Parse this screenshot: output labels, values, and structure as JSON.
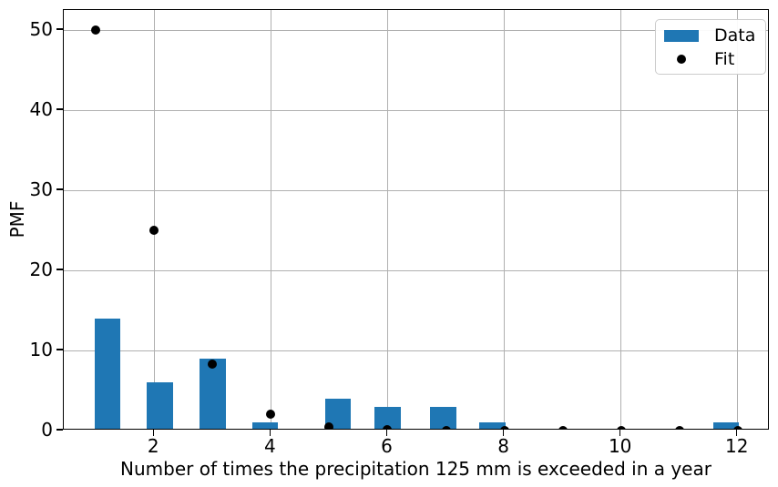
{
  "figure": {
    "background": "#ffffff"
  },
  "chart_data": {
    "type": "bar",
    "title": "",
    "xlabel": "Number of times the precipitation 125 mm is exceeded in a year",
    "ylabel": "PMF",
    "categories": [
      1,
      2,
      3,
      4,
      5,
      6,
      7,
      8,
      9,
      10,
      11,
      12
    ],
    "series": [
      {
        "name": "Data",
        "type": "bar",
        "color": "#1f77b4",
        "values": [
          14,
          6,
          9,
          1,
          4,
          3,
          3,
          1,
          0,
          0,
          0,
          1
        ],
        "bar_centers": [
          1.2,
          2.1,
          3.0,
          3.9,
          5.15,
          6.0,
          6.95,
          7.8,
          9.0,
          10.0,
          11.0,
          11.8
        ],
        "bar_width": 0.45
      },
      {
        "name": "Fit",
        "type": "scatter",
        "color": "#000000",
        "marker": "circle",
        "values": [
          50,
          25,
          8.33,
          2.08,
          0.42,
          0.07,
          0.01,
          0,
          0,
          0,
          0,
          0
        ]
      }
    ],
    "xticks": [
      2,
      4,
      6,
      8,
      10,
      12
    ],
    "yticks": [
      0,
      10,
      20,
      30,
      40,
      50
    ],
    "xlim": [
      0.45,
      12.55
    ],
    "ylim": [
      0,
      52.5
    ],
    "grid": true,
    "grid_color": "#b0b0b0",
    "legend": {
      "position": "upper right",
      "entries": [
        {
          "label": "Data",
          "marker": "bar-swatch"
        },
        {
          "label": "Fit",
          "marker": "dot"
        }
      ]
    }
  }
}
